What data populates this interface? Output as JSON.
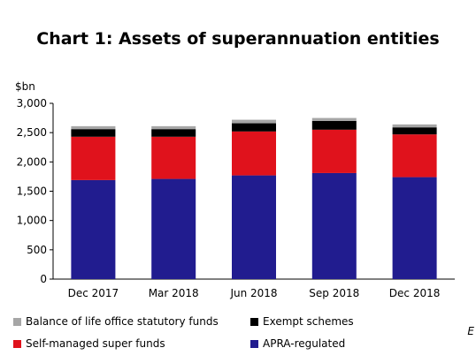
{
  "chart_data": {
    "type": "bar",
    "stacked": true,
    "title": "Chart 1: Assets of superannuation entities",
    "unit": "$bn",
    "xlabel": "",
    "ylabel": "",
    "ylim": [
      0,
      3000
    ],
    "yticks": [
      "0",
      "500",
      "1,000",
      "1,500",
      "2,000",
      "2,500",
      "3,000"
    ],
    "ytick_values": [
      0,
      500,
      1000,
      1500,
      2000,
      2500,
      3000
    ],
    "grid": false,
    "legend_position": "bottom",
    "categories": [
      "Dec 2017",
      "Mar 2018",
      "Jun 2018",
      "Sep 2018",
      "Dec 2018"
    ],
    "series": [
      {
        "name": "APRA-regulated",
        "color": "#211c8f",
        "values": [
          1690,
          1710,
          1770,
          1810,
          1740
        ]
      },
      {
        "name": "Self-managed super funds",
        "color": "#e0121c",
        "values": [
          740,
          720,
          750,
          740,
          730
        ]
      },
      {
        "name": "Exempt schemes",
        "color": "#000000",
        "values": [
          130,
          130,
          140,
          150,
          120
        ]
      },
      {
        "name": "Balance of life office statutory funds",
        "color": "#a6a6a6",
        "values": [
          50,
          50,
          60,
          50,
          50
        ]
      }
    ]
  },
  "legend": {
    "items": [
      {
        "label": "Balance of life office statutory funds",
        "color": "#a6a6a6"
      },
      {
        "label": "Exempt schemes",
        "color": "#000000"
      },
      {
        "label": "Self-managed super funds",
        "color": "#e0121c"
      },
      {
        "label": "APRA-regulated",
        "color": "#211c8f"
      }
    ]
  },
  "corner_mark": "E"
}
